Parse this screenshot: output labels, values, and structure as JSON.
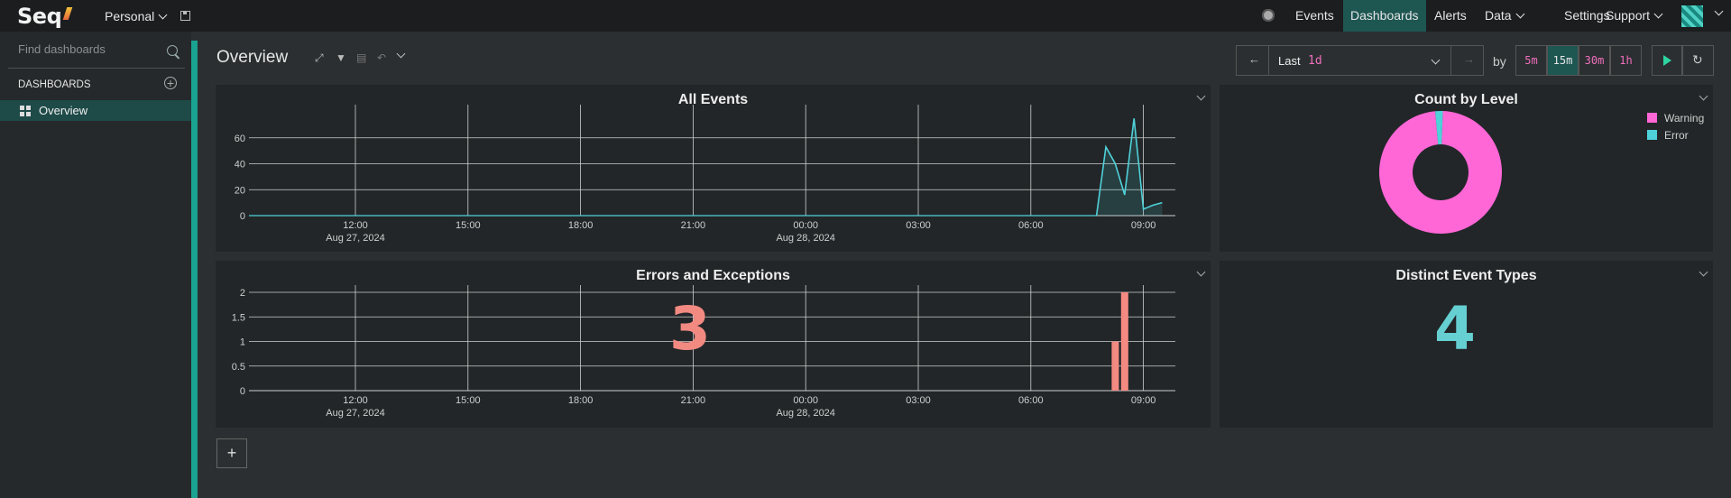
{
  "app": {
    "logo": "Seq",
    "workspace": "Personal"
  },
  "nav": [
    "Events",
    "Dashboards",
    "Alerts",
    "Data",
    "Settings",
    "Support"
  ],
  "nav_active": "Dashboards",
  "sidebar": {
    "search_placeholder": "Find dashboards",
    "heading": "DASHBOARDS",
    "items": [
      {
        "label": "Overview",
        "selected": true
      }
    ]
  },
  "dashboard": {
    "title": "Overview"
  },
  "time_range": {
    "prefix": "Last",
    "value": "1d",
    "by_label": "by",
    "granularities": [
      "5m",
      "15m",
      "30m",
      "1h"
    ],
    "active_granularity": "15m"
  },
  "colors": {
    "accent": "#1e5652",
    "strip": "#1aa391",
    "warning": "#ff66d6",
    "error": "#4fd1d9",
    "errors_bar": "#f38a82",
    "distinct": "#66cfd2"
  },
  "panels": {
    "all_events": {
      "title": "All Events"
    },
    "count_by_level": {
      "title": "Count by Level"
    },
    "errors": {
      "title": "Errors and Exceptions",
      "value": "3"
    },
    "distinct": {
      "title": "Distinct Event Types",
      "value": "4"
    }
  },
  "chart_data": [
    {
      "type": "area",
      "title": "All Events",
      "x_ticks": [
        "12:00",
        "15:00",
        "18:00",
        "21:00",
        "00:00",
        "03:00",
        "06:00",
        "09:00"
      ],
      "x_date_labels": [
        {
          "at": "12:00",
          "text": "Aug 27, 2024"
        },
        {
          "at": "00:00",
          "text": "Aug 28, 2024"
        }
      ],
      "y_ticks": [
        0,
        20,
        40,
        60
      ],
      "ylim": [
        0,
        80
      ],
      "grid": true,
      "series": [
        {
          "x": [
            "07:45",
            "08:00",
            "08:15",
            "08:30",
            "08:45",
            "09:00",
            "09:15",
            "09:30"
          ],
          "values": [
            0,
            53,
            40,
            16,
            75,
            5,
            8,
            10
          ]
        }
      ]
    },
    {
      "type": "pie",
      "title": "Count by Level",
      "legend": "top-right",
      "slices": [
        {
          "name": "Warning",
          "value": 98
        },
        {
          "name": "Error",
          "value": 2
        }
      ]
    },
    {
      "type": "bar",
      "title": "Errors and Exceptions",
      "x_ticks": [
        "12:00",
        "15:00",
        "18:00",
        "21:00",
        "00:00",
        "03:00",
        "06:00",
        "09:00"
      ],
      "x_date_labels": [
        {
          "at": "12:00",
          "text": "Aug 27, 2024"
        },
        {
          "at": "00:00",
          "text": "Aug 28, 2024"
        }
      ],
      "y_ticks": [
        "0",
        "0.5",
        "1",
        "1.5",
        "2"
      ],
      "ylim": [
        0,
        2
      ],
      "grid": true,
      "bars": [
        {
          "x": "08:15",
          "value": 1
        },
        {
          "x": "08:30",
          "value": 2
        }
      ]
    }
  ]
}
